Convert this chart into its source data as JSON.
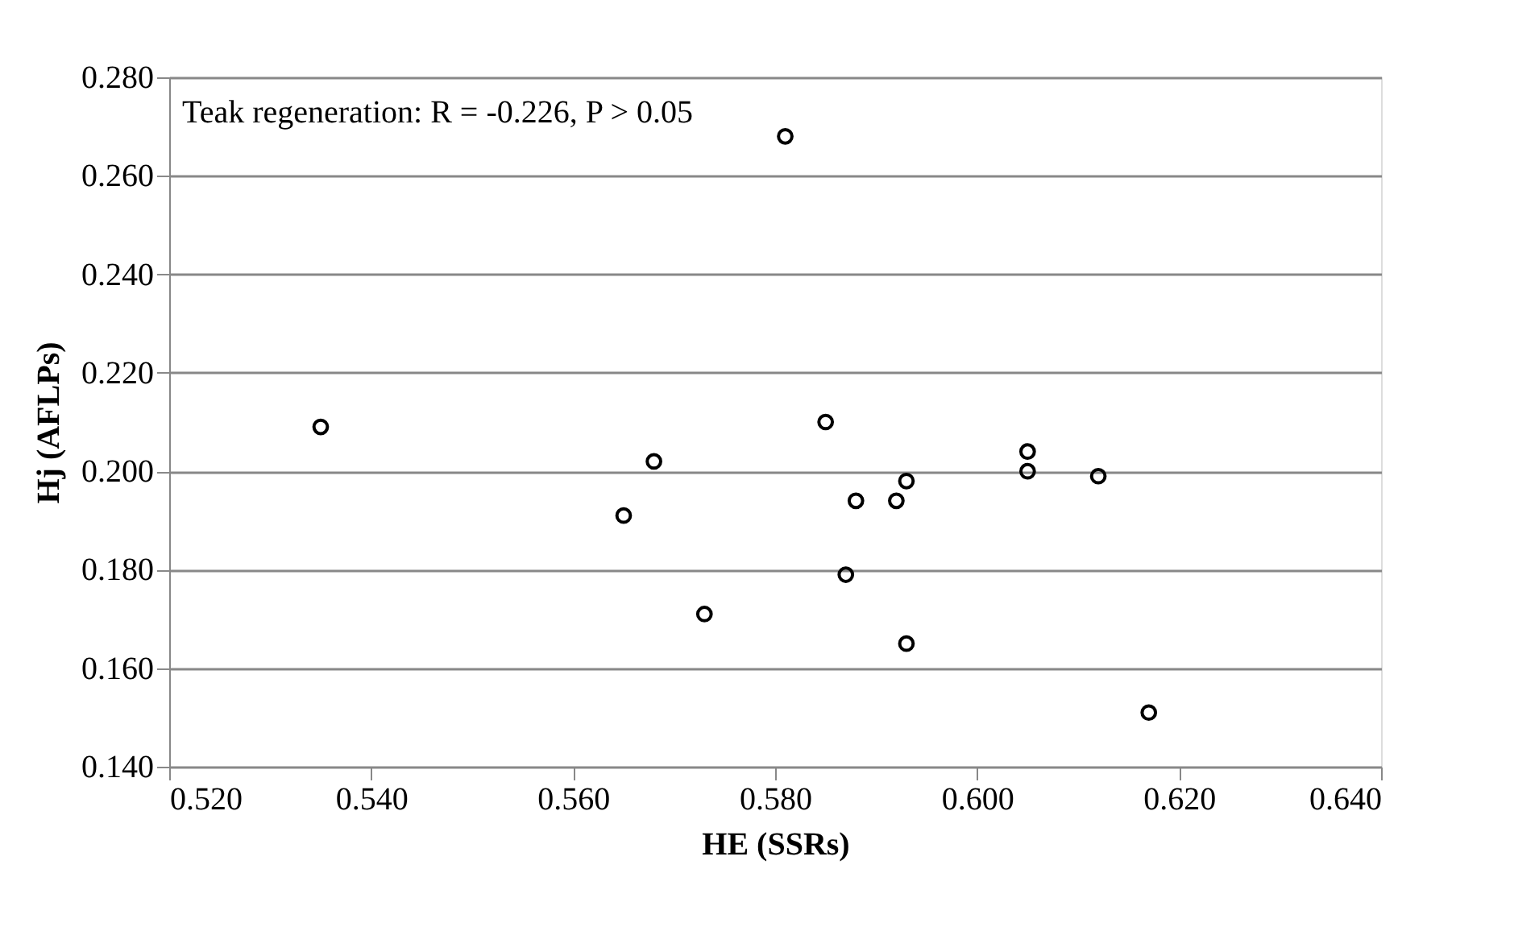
{
  "chart_data": {
    "type": "scatter",
    "xlabel": "HE (SSRs)",
    "ylabel": "Hj (AFLPs)",
    "annotations": [
      "Teak regeneration: R = -0.226, P > 0.05"
    ],
    "x": [
      0.535,
      0.565,
      0.568,
      0.573,
      0.581,
      0.585,
      0.587,
      0.588,
      0.592,
      0.593,
      0.593,
      0.605,
      0.605,
      0.612,
      0.617
    ],
    "series": [
      {
        "color": "#000000",
        "values": [
          0.209,
          0.191,
          0.202,
          0.171,
          0.268,
          0.21,
          0.179,
          0.194,
          0.194,
          0.198,
          0.165,
          0.204,
          0.2,
          0.199,
          0.151
        ]
      }
    ],
    "xlim": [
      0.52,
      0.64
    ],
    "xticks": [
      {
        "value": 0.52,
        "label": "0.520"
      },
      {
        "value": 0.54,
        "label": "0.540"
      },
      {
        "value": 0.56,
        "label": "0.560"
      },
      {
        "value": 0.58,
        "label": "0.580"
      },
      {
        "value": 0.6,
        "label": "0.600"
      },
      {
        "value": 0.62,
        "label": "0.620"
      },
      {
        "value": 0.64,
        "label": "0.640"
      }
    ],
    "ylim": [
      0.14,
      0.28
    ],
    "yticks": [
      {
        "value": 0.14,
        "label": "0.140"
      },
      {
        "value": 0.16,
        "label": "0.160"
      },
      {
        "value": 0.18,
        "label": "0.180"
      },
      {
        "value": 0.2,
        "label": "0.200"
      },
      {
        "value": 0.22,
        "label": "0.220"
      },
      {
        "value": 0.24,
        "label": "0.240"
      },
      {
        "value": 0.26,
        "label": "0.260"
      },
      {
        "value": 0.28,
        "label": "0.280"
      }
    ],
    "grid": "y",
    "marker": "circle"
  }
}
